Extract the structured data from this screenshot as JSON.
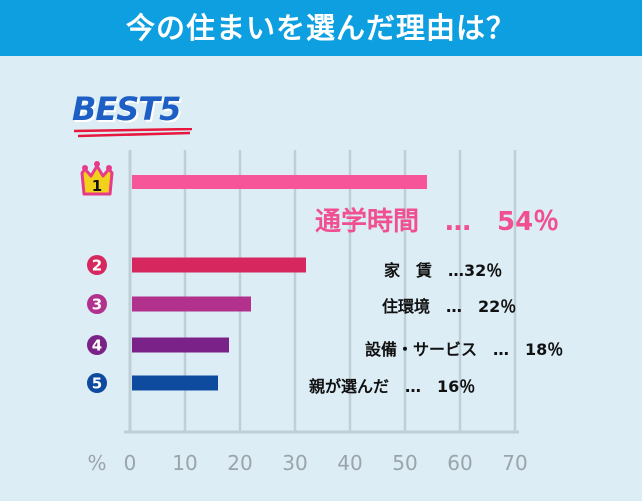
{
  "header": {
    "title": "今の住まいを選んだ理由は？"
  },
  "badge": {
    "text": "BEST5"
  },
  "chart_data": {
    "type": "bar",
    "orientation": "horizontal",
    "title": "今の住まいを選んだ理由は？",
    "x_unit": "%",
    "xlim": [
      0,
      70
    ],
    "x_ticks": [
      "0",
      "10",
      "20",
      "30",
      "40",
      "50",
      "60",
      "70"
    ],
    "grid": true,
    "categories": [
      "通学時間",
      "家　賃",
      "住環境",
      "設備・サービス",
      "親が選んだ"
    ],
    "values": [
      54,
      32,
      22,
      18,
      16
    ],
    "labels": [
      "通学時間　…　54％",
      "家　賃　…32％",
      "住環境　…　22％",
      "設備・サービス　…　18％",
      "親が選んだ　…　16％"
    ],
    "ranks": [
      "1",
      "2",
      "3",
      "4",
      "5"
    ],
    "colors": [
      "#f7559a",
      "#d6285e",
      "#b1318c",
      "#7b2288",
      "#0e4b9f"
    ]
  }
}
